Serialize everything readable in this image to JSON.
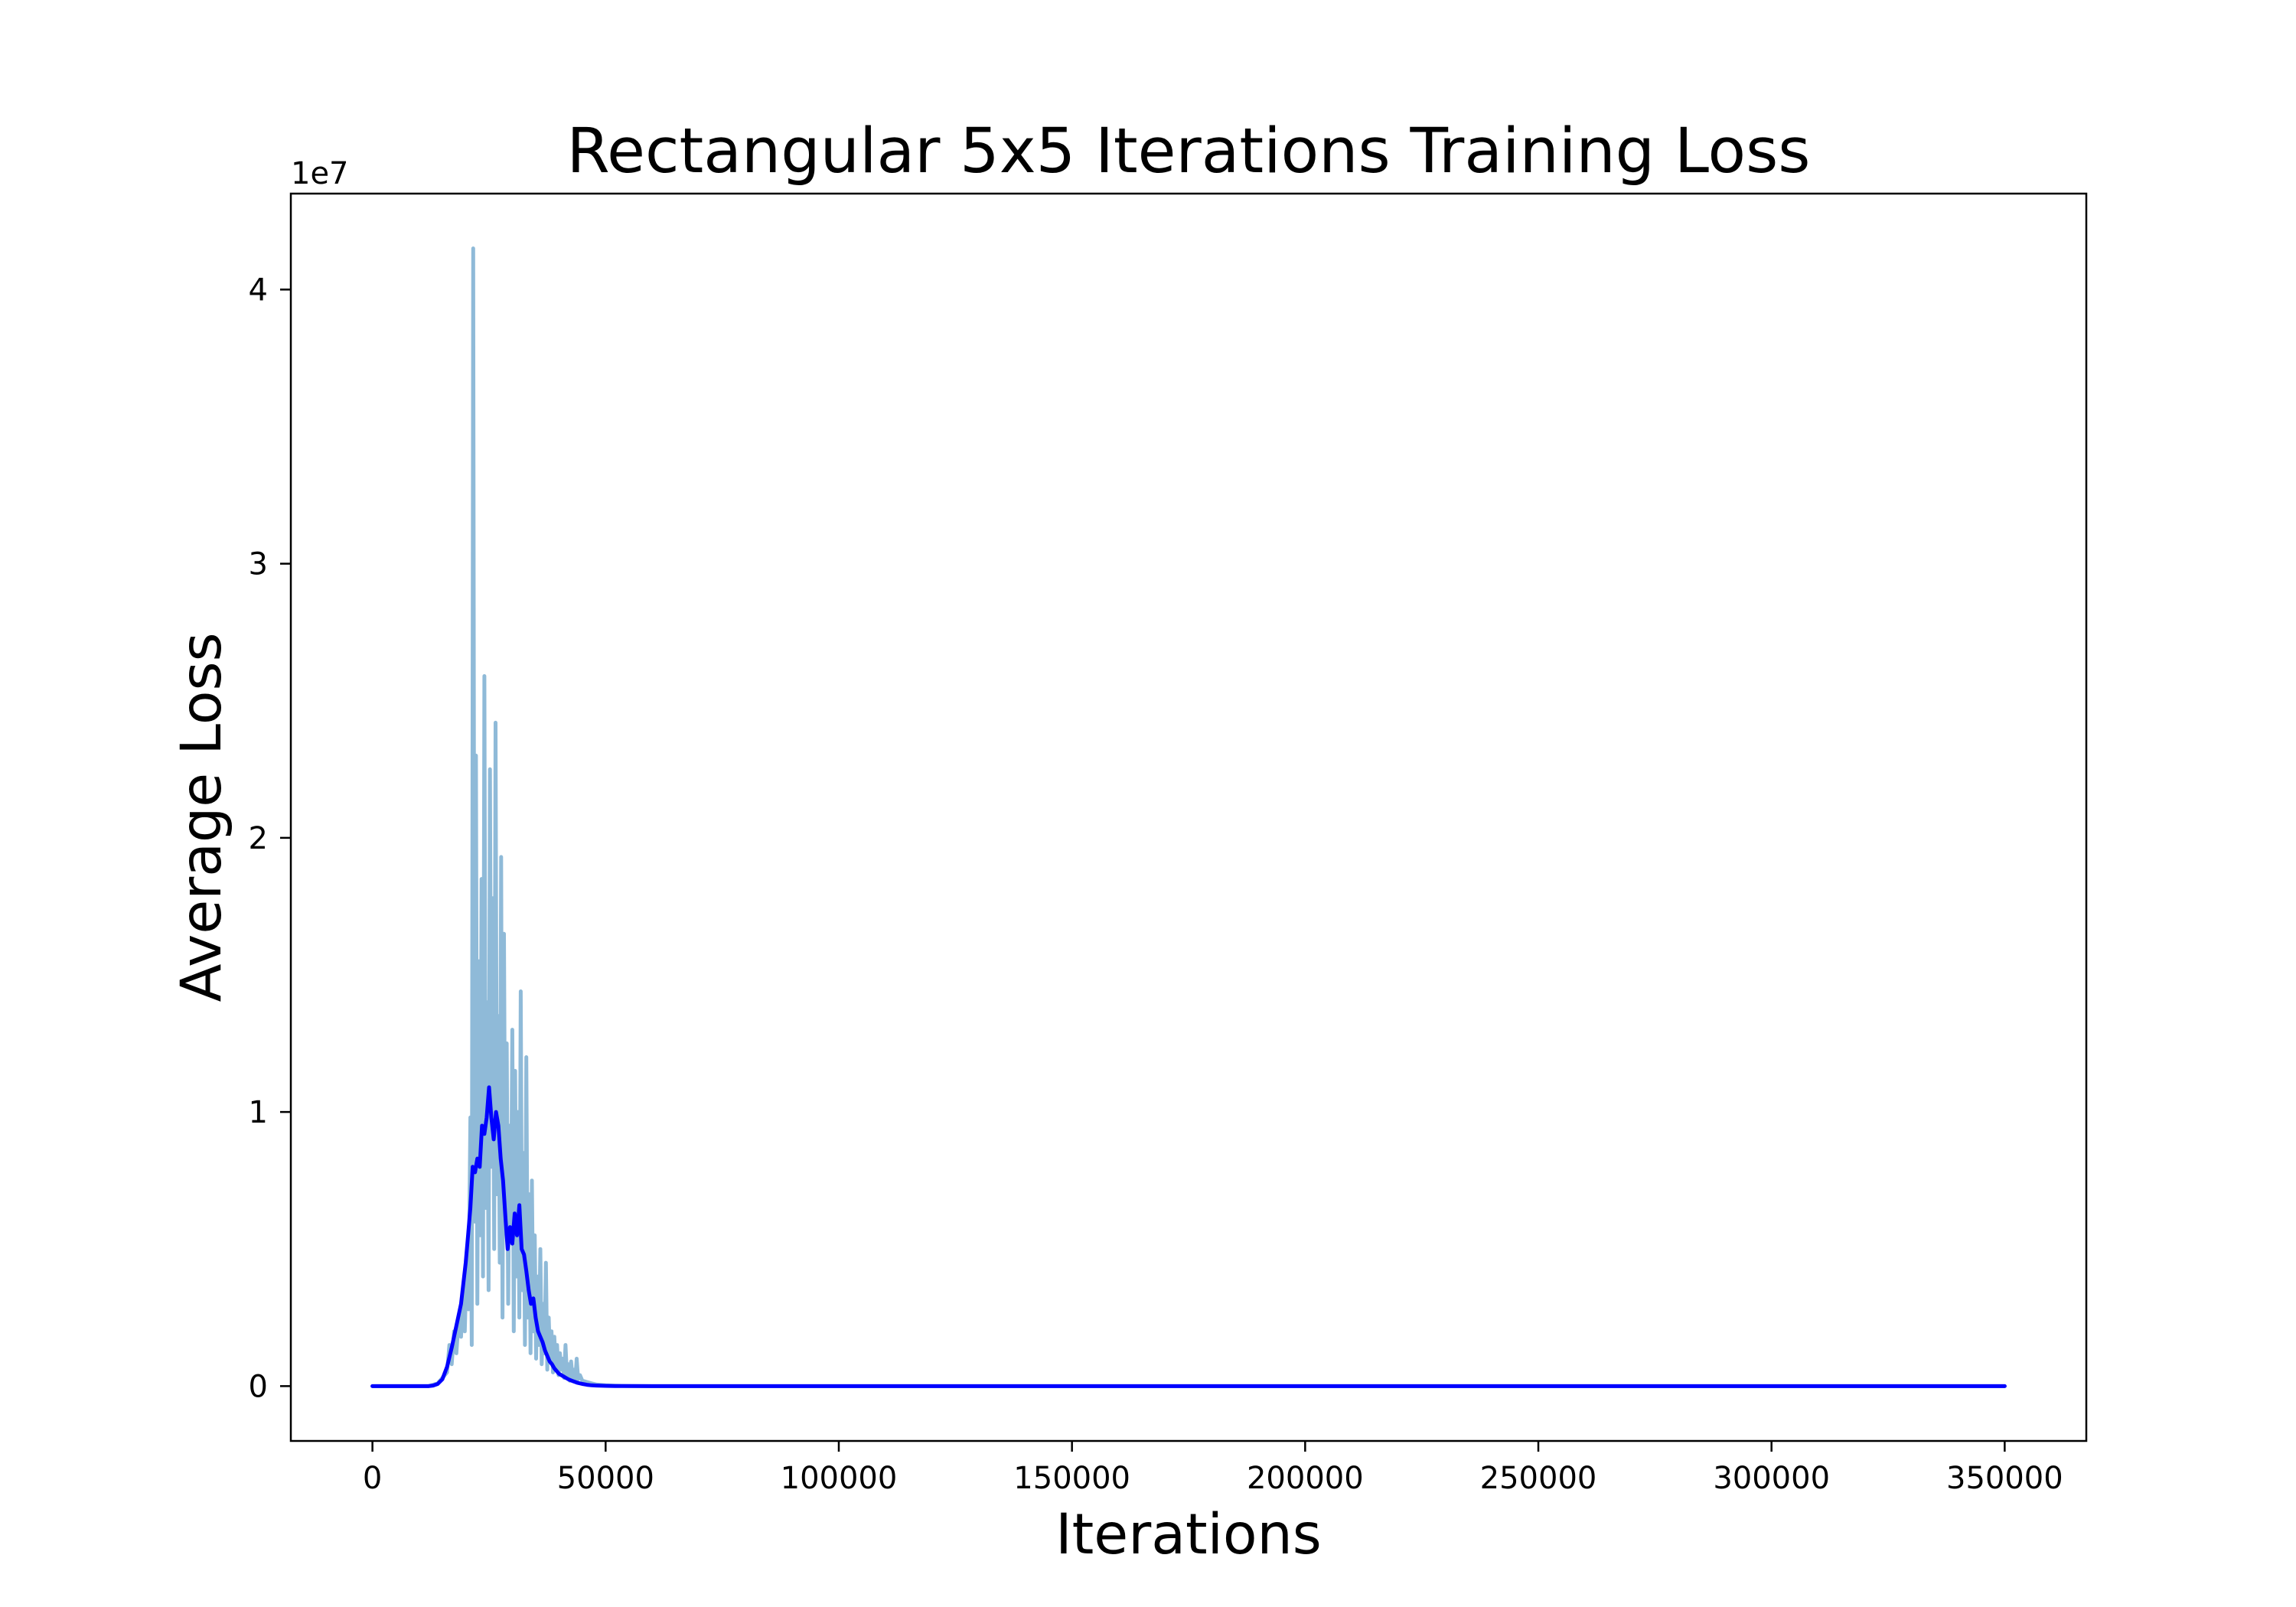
{
  "chart_data": {
    "type": "line",
    "title": "Rectangular 5x5 Iterations Training Loss",
    "xlabel": "Iterations",
    "ylabel": "Average Loss",
    "y_offset_label": "1e7",
    "xlim": [
      -17500,
      367500
    ],
    "ylim": [
      -2000000,
      43500000
    ],
    "x_ticks": [
      0,
      50000,
      100000,
      150000,
      200000,
      250000,
      300000,
      350000
    ],
    "x_tick_labels": [
      "0",
      "50000",
      "100000",
      "150000",
      "200000",
      "250000",
      "300000",
      "350000"
    ],
    "y_ticks": [
      0,
      10000000,
      20000000,
      30000000,
      40000000
    ],
    "y_tick_labels": [
      "0",
      "1",
      "2",
      "3",
      "4"
    ],
    "grid": false,
    "legend": "none",
    "series": [
      {
        "role": "raw",
        "color": "#8fbad8",
        "x": [
          0,
          12000,
          14000,
          15000,
          16000,
          16500,
          17000,
          17500,
          18000,
          18500,
          19000,
          19400,
          19800,
          20200,
          20600,
          21000,
          21300,
          21600,
          21900,
          22200,
          22500,
          22800,
          23100,
          23400,
          23700,
          24000,
          24300,
          24600,
          24900,
          25200,
          25500,
          25800,
          26100,
          26400,
          26700,
          27000,
          27300,
          27600,
          27900,
          28200,
          28500,
          28800,
          29100,
          29400,
          29700,
          30000,
          30300,
          30600,
          30900,
          31200,
          31500,
          31800,
          32100,
          32400,
          32700,
          33000,
          33300,
          33600,
          33900,
          34200,
          34500,
          34800,
          35100,
          35400,
          35700,
          36000,
          36300,
          36600,
          36900,
          37200,
          37500,
          37800,
          38100,
          38400,
          38700,
          39000,
          39300,
          39600,
          39900,
          40200,
          40500,
          40800,
          41100,
          41400,
          41700,
          42000,
          42300,
          42600,
          42900,
          43200,
          43500,
          43800,
          44100,
          44500,
          45000,
          46000,
          47000,
          48000,
          50000,
          52000,
          55000,
          60000,
          100000,
          200000,
          350000
        ],
        "y": [
          0,
          0,
          100000,
          300000,
          500000,
          1500000,
          800000,
          2000000,
          1200000,
          2500000,
          1800000,
          3200000,
          2000000,
          4500000,
          2800000,
          9800000,
          1500000,
          41500000,
          6000000,
          23000000,
          3000000,
          15500000,
          5500000,
          18500000,
          4000000,
          25900000,
          6500000,
          14000000,
          3500000,
          22500000,
          8000000,
          17800000,
          5000000,
          24200000,
          7000000,
          13500000,
          4500000,
          19300000,
          2500000,
          16500000,
          6000000,
          12500000,
          3000000,
          9500000,
          5500000,
          13000000,
          2000000,
          11500000,
          4000000,
          10000000,
          2500000,
          14400000,
          3500000,
          8500000,
          1500000,
          12000000,
          2500000,
          7000000,
          1200000,
          7500000,
          2000000,
          5500000,
          1000000,
          4000000,
          1500000,
          5000000,
          800000,
          3000000,
          1200000,
          4500000,
          600000,
          2500000,
          900000,
          2000000,
          500000,
          1800000,
          700000,
          1500000,
          400000,
          1200000,
          600000,
          1000000,
          300000,
          1500000,
          400000,
          800000,
          200000,
          900000,
          300000,
          600000,
          200000,
          1000000,
          250000,
          400000,
          200000,
          150000,
          100000,
          60000,
          30000,
          15000,
          5000,
          0,
          0,
          0,
          0
        ]
      },
      {
        "role": "smoothed",
        "color": "#0000ff",
        "x": [
          0,
          12000,
          13000,
          14000,
          15000,
          16000,
          17000,
          18000,
          19000,
          20000,
          20500,
          21000,
          21500,
          22000,
          22500,
          23000,
          23500,
          24000,
          24500,
          25000,
          25500,
          26000,
          26500,
          27000,
          27500,
          28000,
          28500,
          29000,
          29500,
          30000,
          30500,
          31000,
          31500,
          32000,
          32500,
          33000,
          33500,
          34000,
          34500,
          35000,
          35500,
          36000,
          36500,
          37000,
          37500,
          38000,
          38500,
          39000,
          39500,
          40000,
          40500,
          41000,
          41500,
          42000,
          43000,
          44000,
          45000,
          46000,
          47000,
          48000,
          50000,
          52000,
          55000,
          60000,
          100000,
          200000,
          350000
        ],
        "y": [
          0,
          0,
          20000,
          80000,
          250000,
          700000,
          1400000,
          2200000,
          3000000,
          4500000,
          5500000,
          6500000,
          8000000,
          7800000,
          8300000,
          8000000,
          9500000,
          9200000,
          9800000,
          10900000,
          9800000,
          9000000,
          10000000,
          9500000,
          8300000,
          7500000,
          6200000,
          5000000,
          5800000,
          5200000,
          6300000,
          5500000,
          6600000,
          5000000,
          4800000,
          4200000,
          3500000,
          3000000,
          3200000,
          2500000,
          2000000,
          1800000,
          1600000,
          1300000,
          1100000,
          900000,
          800000,
          650000,
          550000,
          450000,
          400000,
          350000,
          300000,
          250000,
          180000,
          120000,
          80000,
          50000,
          30000,
          20000,
          10000,
          5000,
          1000,
          0,
          0,
          0,
          0
        ]
      }
    ]
  }
}
